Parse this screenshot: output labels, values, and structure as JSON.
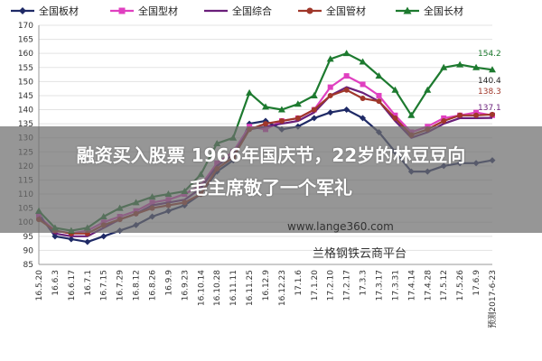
{
  "overlay": {
    "line1": "融资买入股票 1966年国庆节，22岁的林豆豆向",
    "line2": "毛主席敬了一个军礼"
  },
  "watermark": {
    "url": "www.lange360.com",
    "name": "兰格钢铁云商平台"
  },
  "chart_data": {
    "type": "line",
    "ylim": [
      85,
      170
    ],
    "yticks": [
      85,
      90,
      95,
      100,
      105,
      110,
      115,
      120,
      125,
      130,
      135,
      140,
      145,
      150,
      155,
      160,
      165,
      170
    ],
    "categories": [
      "16.5.20",
      "16.6.3",
      "16.6.17",
      "16.7.1",
      "16.7.15",
      "16.7.29",
      "16.8.12",
      "16.8.26",
      "16.9.9",
      "16.9.23",
      "16.10.14",
      "16.10.28",
      "16.11.11",
      "16.11.25",
      "16.12.9",
      "16.12.23",
      "17.1.6",
      "17.1.20",
      "17.2.10",
      "17.2.17",
      "17.3.3",
      "17.3.17",
      "17.3.31",
      "17.4.14",
      "17.4.28",
      "17.5.12",
      "17.5.26",
      "17.6.9",
      "预测2017-6-23"
    ],
    "series": [
      {
        "name": "全国板材",
        "color": "#1f2a66",
        "marker": "diamond",
        "values": [
          103,
          95,
          94,
          93,
          95,
          97,
          99,
          102,
          104,
          106,
          110,
          118,
          122,
          135,
          136,
          133,
          134,
          137,
          139,
          140,
          137,
          132,
          125,
          118,
          118,
          120,
          121,
          121,
          122
        ]
      },
      {
        "name": "全国型材",
        "color": "#e040c0",
        "marker": "square",
        "values": [
          102,
          97,
          96,
          97,
          100,
          102,
          104,
          107,
          108,
          110,
          113,
          121,
          125,
          134,
          133,
          136,
          137,
          140,
          148,
          152,
          149,
          145,
          138,
          132,
          134,
          137,
          138,
          139,
          138
        ]
      },
      {
        "name": "全国综合",
        "color": "#6a1f7a",
        "marker": "none",
        "values": [
          102,
          96,
          95,
          95,
          98,
          101,
          103,
          106,
          107,
          108,
          112,
          120,
          124,
          133,
          134,
          135,
          136,
          139,
          145,
          148,
          146,
          143,
          136,
          130,
          132,
          135,
          137,
          137,
          137.1
        ]
      },
      {
        "name": "全国管材",
        "color": "#a0372a",
        "marker": "circle",
        "values": [
          101,
          97,
          96,
          96,
          99,
          101,
          103,
          105,
          106,
          107,
          110,
          119,
          123,
          133,
          135,
          136,
          137,
          140,
          145,
          147,
          144,
          143,
          137,
          131,
          133,
          136,
          138,
          138,
          138.3
        ]
      },
      {
        "name": "全国长材",
        "color": "#1d7a2f",
        "marker": "triangle",
        "values": [
          104,
          98,
          97,
          98,
          102,
          105,
          107,
          109,
          110,
          111,
          117,
          128,
          130,
          146,
          141,
          140,
          142,
          145,
          158,
          160,
          157,
          152,
          147,
          138,
          147,
          155,
          156,
          155,
          154.2
        ]
      }
    ],
    "end_labels": [
      {
        "text": "154.2",
        "color": "#1d7a2f"
      },
      {
        "text": "140.4",
        "color": "#222222"
      },
      {
        "text": "138.3",
        "color": "#a0372a"
      },
      {
        "text": "137.1",
        "color": "#6a1f7a"
      }
    ]
  }
}
